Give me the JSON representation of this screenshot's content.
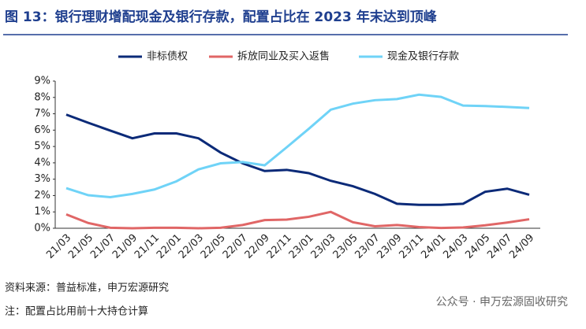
{
  "chart_data": {
    "type": "line",
    "title": "图 13：银行理财增配现金及银行存款，配置占比在 2023 年末达到顶峰",
    "categories": [
      "21/03",
      "21/05",
      "21/07",
      "21/09",
      "21/11",
      "22/01",
      "22/03",
      "22/05",
      "22/07",
      "22/09",
      "22/11",
      "23/01",
      "23/03",
      "23/05",
      "23/07",
      "23/09",
      "23/11",
      "24/01",
      "24/03",
      "24/05",
      "24/07",
      "24/09"
    ],
    "series": [
      {
        "name": "非标债权",
        "color": "#0b2a78",
        "values": [
          6.95,
          6.45,
          5.97,
          5.5,
          5.8,
          5.8,
          5.5,
          4.63,
          3.97,
          3.5,
          3.57,
          3.37,
          2.9,
          2.57,
          2.1,
          1.5,
          1.43,
          1.43,
          1.5,
          2.23,
          2.42,
          2.05
        ]
      },
      {
        "name": "拆放同业及买入返售",
        "color": "#e06666",
        "values": [
          0.85,
          0.32,
          0.03,
          0,
          0.03,
          0.03,
          0,
          0.03,
          0.2,
          0.5,
          0.53,
          0.7,
          1.0,
          0.37,
          0.12,
          0.2,
          0.07,
          0.02,
          0.05,
          0.18,
          0.35,
          0.55
        ]
      },
      {
        "name": "现金及银行存款",
        "color": "#6fd3f7",
        "values": [
          2.45,
          2.02,
          1.9,
          2.1,
          2.37,
          2.87,
          3.6,
          3.97,
          4.05,
          3.85,
          4.95,
          6.08,
          7.25,
          7.62,
          7.83,
          7.9,
          8.17,
          8.03,
          7.5,
          7.47,
          7.42,
          7.35
        ]
      }
    ],
    "ylim": [
      0,
      9
    ],
    "yticks": [
      {
        "value": 0,
        "label": "0%"
      },
      {
        "value": 1,
        "label": "1%"
      },
      {
        "value": 2,
        "label": "2%"
      },
      {
        "value": 3,
        "label": "3%"
      },
      {
        "value": 4,
        "label": "4%"
      },
      {
        "value": 5,
        "label": "5%"
      },
      {
        "value": 6,
        "label": "6%"
      },
      {
        "value": 7,
        "label": "7%"
      },
      {
        "value": 8,
        "label": "8%"
      },
      {
        "value": 9,
        "label": "9%"
      }
    ],
    "legend": "top",
    "source": "资料来源：普益标准，申万宏源研究",
    "note": "注：配置占比用前十大持仓计算",
    "watermark": "公众号 · 申万宏源固收研究"
  }
}
